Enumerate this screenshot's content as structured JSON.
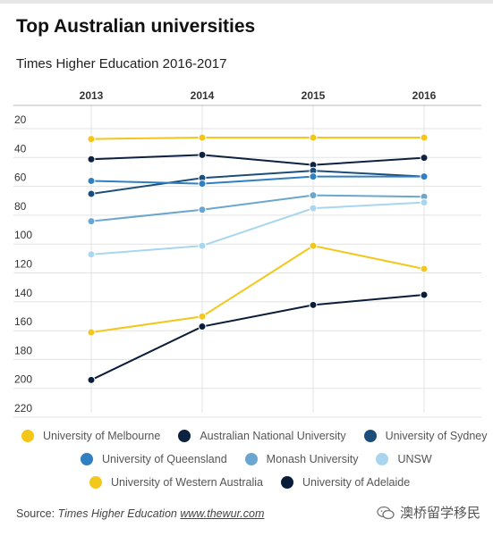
{
  "header": {
    "title": "Top Australian universities",
    "subtitle": "Times Higher Education 2016-2017"
  },
  "chart_data": {
    "type": "line",
    "title": "Top Australian universities",
    "subtitle": "Times Higher Education 2016-2017",
    "x": [
      "2013",
      "2014",
      "2015",
      "2016"
    ],
    "y_ticks": [
      20,
      40,
      60,
      80,
      100,
      120,
      140,
      160,
      180,
      200,
      220
    ],
    "ylim": [
      20,
      220
    ],
    "y_inverted": true,
    "grid": true,
    "legend_position": "bottom",
    "series": [
      {
        "name": "University of Melbourne",
        "color": "#f5c518",
        "values": [
          34,
          33,
          33,
          33
        ]
      },
      {
        "name": "Australian National University",
        "color": "#0d2240",
        "values": [
          48,
          45,
          52,
          47
        ]
      },
      {
        "name": "University of Sydney",
        "color": "#1d4e79",
        "values": [
          72,
          61,
          56,
          60
        ]
      },
      {
        "name": "University of Queensland",
        "color": "#2f7fc1",
        "values": [
          63,
          65,
          60,
          60
        ]
      },
      {
        "name": "Monash University",
        "color": "#6aa6cf",
        "values": [
          91,
          83,
          73,
          74
        ]
      },
      {
        "name": "UNSW",
        "color": "#a9d6ee",
        "values": [
          114,
          108,
          82,
          78
        ]
      },
      {
        "name": "University of Western Australia",
        "color": "#f2c81e",
        "values": [
          168,
          157,
          108,
          124
        ]
      },
      {
        "name": "University of Adelaide",
        "color": "#0a1d38",
        "values": [
          201,
          164,
          149,
          142
        ]
      }
    ]
  },
  "legend": {
    "rows": [
      [
        "University of Melbourne",
        "Australian National University",
        "University of Sydney"
      ],
      [
        "University of Queensland",
        "Monash University",
        "UNSW"
      ],
      [
        "University of Western Australia",
        "University of Adelaide"
      ]
    ]
  },
  "source": {
    "label": "Source:",
    "publication": "Times Higher Education",
    "url": "www.thewur.com"
  },
  "watermark": {
    "text": "澳桥留学移民",
    "icon": "wechat-icon"
  }
}
